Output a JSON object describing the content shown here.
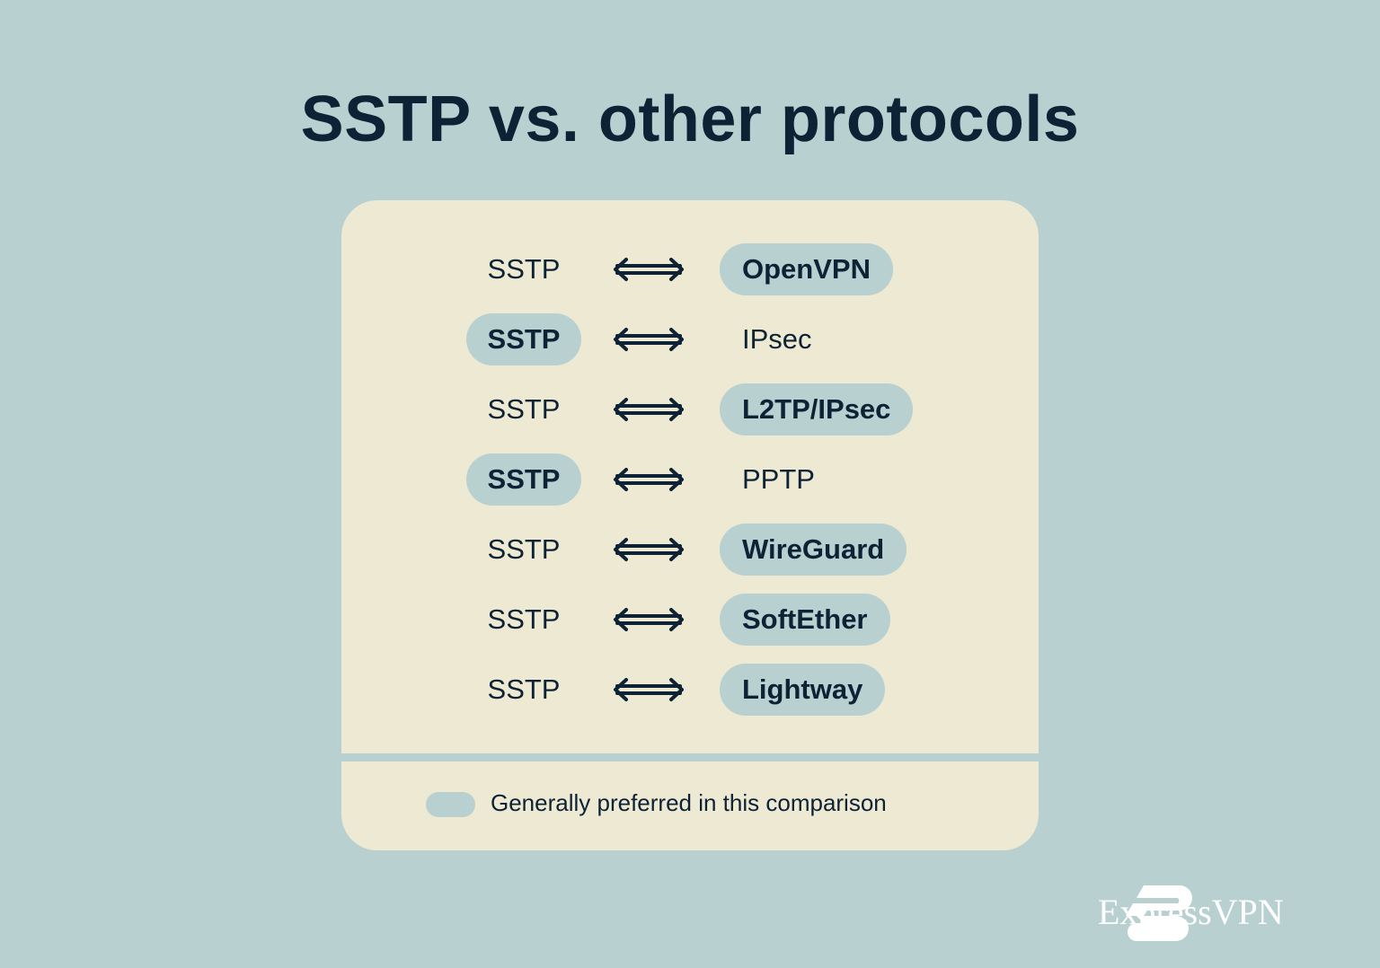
{
  "title": "SSTP vs. other protocols",
  "colors": {
    "background": "#b8d0d0",
    "card": "#eee9d2",
    "text": "#0d2235",
    "highlight": "#b8d0d0"
  },
  "rows": [
    {
      "left": "SSTP",
      "right": "OpenVPN",
      "preferred": "right"
    },
    {
      "left": "SSTP",
      "right": "IPsec",
      "preferred": "left"
    },
    {
      "left": "SSTP",
      "right": "L2TP/IPsec",
      "preferred": "right"
    },
    {
      "left": "SSTP",
      "right": "PPTP",
      "preferred": "left"
    },
    {
      "left": "SSTP",
      "right": "WireGuard",
      "preferred": "right"
    },
    {
      "left": "SSTP",
      "right": "SoftEther",
      "preferred": "right"
    },
    {
      "left": "SSTP",
      "right": "Lightway",
      "preferred": "right"
    }
  ],
  "arrow_icon": "double-arrow-left-right",
  "legend": {
    "label": "Generally preferred in this comparison"
  },
  "brand": {
    "name": "ExpressVPN"
  }
}
